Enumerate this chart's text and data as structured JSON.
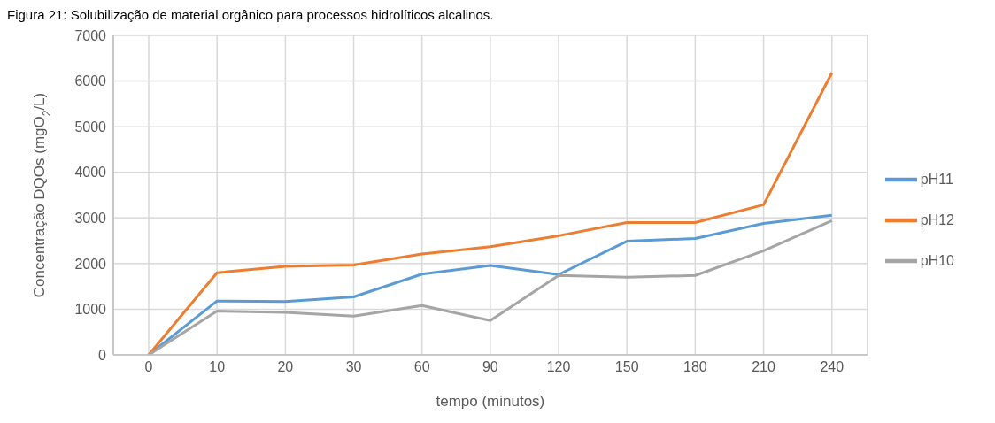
{
  "chart_data": {
    "type": "line",
    "title": "Figura 21: Solubilização de material orgânico para processos hidrolíticos alcalinos.",
    "xlabel": "tempo (minutos)",
    "ylabel": "Concentração DQOs (mgO$_{2}$/L)",
    "categories": [
      "0",
      "10",
      "20",
      "30",
      "60",
      "90",
      "120",
      "150",
      "180",
      "210",
      "240"
    ],
    "series": [
      {
        "name": "pH11",
        "color": "#5b9bd5",
        "values": [
          0,
          1180,
          1170,
          1270,
          1770,
          1960,
          1760,
          2490,
          2550,
          2880,
          3060
        ]
      },
      {
        "name": "pH12",
        "color": "#ed7d31",
        "values": [
          0,
          1800,
          1940,
          1970,
          2210,
          2370,
          2610,
          2900,
          2900,
          3290,
          6180
        ]
      },
      {
        "name": "pH10",
        "color": "#a5a5a5",
        "values": [
          0,
          960,
          930,
          850,
          1080,
          750,
          1740,
          1700,
          1740,
          2280,
          2940
        ]
      }
    ],
    "ylim": [
      0,
      7000
    ],
    "yticks": [
      0,
      1000,
      2000,
      3000,
      4000,
      5000,
      6000,
      7000
    ],
    "grid": true,
    "legend": "right",
    "marker": "none",
    "line_style": "solid"
  }
}
